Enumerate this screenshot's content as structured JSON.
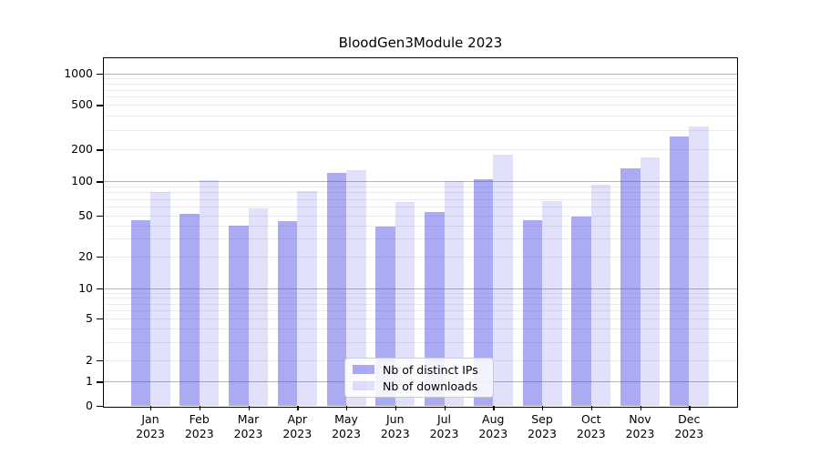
{
  "chart_data": {
    "type": "bar",
    "title": "BloodGen3Module 2023",
    "categories": [
      "Jan 2023",
      "Feb 2023",
      "Mar 2023",
      "Apr 2023",
      "May 2023",
      "Jun 2023",
      "Jul 2023",
      "Aug 2023",
      "Sep 2023",
      "Oct 2023",
      "Nov 2023",
      "Dec 2023"
    ],
    "series": [
      {
        "name": "Nb of distinct IPs",
        "color": "rgba(77,77,230,0.47)",
        "values": [
          45,
          52,
          40,
          44,
          120,
          39,
          54,
          105,
          45,
          49,
          132,
          260
        ]
      },
      {
        "name": "Nb of downloads",
        "color": "rgba(77,77,230,0.17)",
        "values": [
          80,
          102,
          58,
          82,
          127,
          66,
          100,
          180,
          67,
          93,
          170,
          320
        ]
      }
    ],
    "yscale": "symlog",
    "yticks": [
      0,
      1,
      2,
      5,
      10,
      20,
      50,
      100,
      200,
      500,
      1000
    ],
    "ylim": [
      0,
      1400
    ],
    "grid": true,
    "gridline_major_values": [
      1,
      10,
      100,
      1000
    ],
    "legend_position": "lower center",
    "colors": {
      "bar_dark_on_white": "#abaaf3",
      "bar_light_on_white": "#dddcf9",
      "grid_major": "#b4b4b4",
      "grid_minor": "#ebebeb"
    }
  }
}
